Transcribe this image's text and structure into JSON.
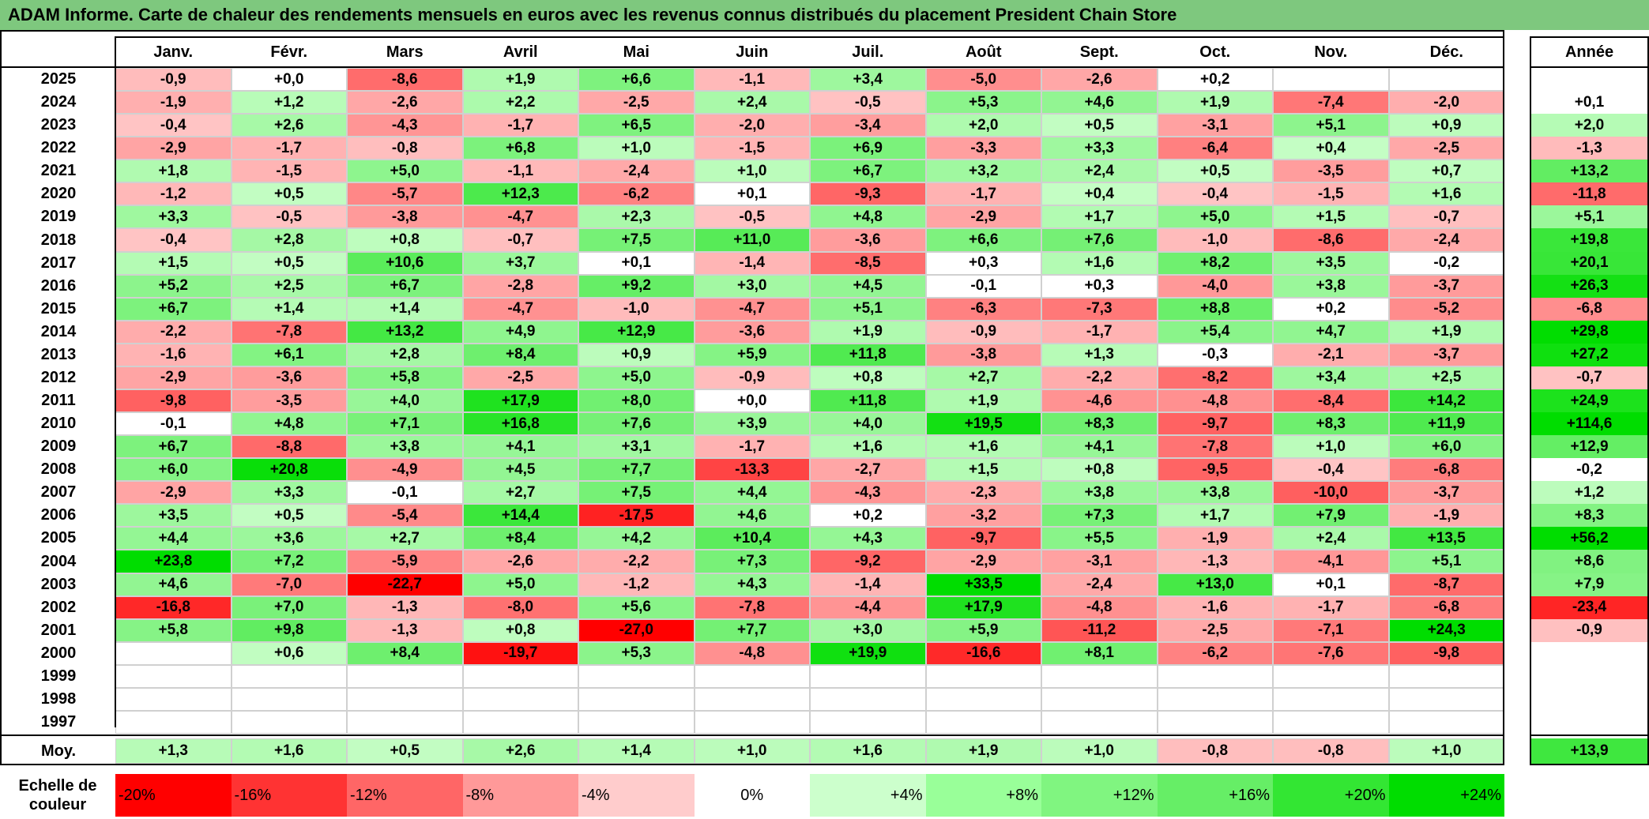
{
  "title": "ADAM Informe. Carte de chaleur des rendements mensuels en euros avec les revenus connus distribués du placement President Chain Store",
  "chart_data": {
    "type": "heatmap",
    "title": "ADAM Informe. Carte de chaleur des rendements mensuels en euros avec les revenus connus distribués du placement President Chain Store",
    "months": [
      "Janv.",
      "Févr.",
      "Mars",
      "Avril",
      "Mai",
      "Juin",
      "Juil.",
      "Août",
      "Sept.",
      "Oct.",
      "Nov.",
      "Déc."
    ],
    "annual_header": "Année",
    "rows": [
      {
        "year": "2025",
        "values": [
          "-0,9",
          "+0,0",
          "-8,6",
          "+1,9",
          "+6,6",
          "-1,1",
          "+3,4",
          "-5,0",
          "-2,6",
          "+0,2",
          "",
          ""
        ],
        "annual": ""
      },
      {
        "year": "2024",
        "values": [
          "-1,9",
          "+1,2",
          "-2,6",
          "+2,2",
          "-2,5",
          "+2,4",
          "-0,5",
          "+5,3",
          "+4,6",
          "+1,9",
          "-7,4",
          "-2,0"
        ],
        "annual": "+0,1"
      },
      {
        "year": "2023",
        "values": [
          "-0,4",
          "+2,6",
          "-4,3",
          "-1,7",
          "+6,5",
          "-2,0",
          "-3,4",
          "+2,0",
          "+0,5",
          "-3,1",
          "+5,1",
          "+0,9"
        ],
        "annual": "+2,0"
      },
      {
        "year": "2022",
        "values": [
          "-2,9",
          "-1,7",
          "-0,8",
          "+6,8",
          "+1,0",
          "-1,5",
          "+6,9",
          "-3,3",
          "+3,3",
          "-6,4",
          "+0,4",
          "-2,5"
        ],
        "annual": "-1,3"
      },
      {
        "year": "2021",
        "values": [
          "+1,8",
          "-1,5",
          "+5,0",
          "-1,1",
          "-2,4",
          "+1,0",
          "+6,7",
          "+3,2",
          "+2,4",
          "+0,5",
          "-3,5",
          "+0,7"
        ],
        "annual": "+13,2"
      },
      {
        "year": "2020",
        "values": [
          "-1,2",
          "+0,5",
          "-5,7",
          "+12,3",
          "-6,2",
          "+0,1",
          "-9,3",
          "-1,7",
          "+0,4",
          "-0,4",
          "-1,5",
          "+1,6"
        ],
        "annual": "-11,8"
      },
      {
        "year": "2019",
        "values": [
          "+3,3",
          "-0,5",
          "-3,8",
          "-4,7",
          "+2,3",
          "-0,5",
          "+4,8",
          "-2,9",
          "+1,7",
          "+5,0",
          "+1,5",
          "-0,7"
        ],
        "annual": "+5,1"
      },
      {
        "year": "2018",
        "values": [
          "-0,4",
          "+2,8",
          "+0,8",
          "-0,7",
          "+7,5",
          "+11,0",
          "-3,6",
          "+6,6",
          "+7,6",
          "-1,0",
          "-8,6",
          "-2,4"
        ],
        "annual": "+19,8"
      },
      {
        "year": "2017",
        "values": [
          "+1,5",
          "+0,5",
          "+10,6",
          "+3,7",
          "+0,1",
          "-1,4",
          "-8,5",
          "+0,3",
          "+1,6",
          "+8,2",
          "+3,5",
          "-0,2"
        ],
        "annual": "+20,1"
      },
      {
        "year": "2016",
        "values": [
          "+5,2",
          "+2,5",
          "+6,7",
          "-2,8",
          "+9,2",
          "+3,0",
          "+4,5",
          "-0,1",
          "+0,3",
          "-4,0",
          "+3,8",
          "-3,7"
        ],
        "annual": "+26,3"
      },
      {
        "year": "2015",
        "values": [
          "+6,7",
          "+1,4",
          "+1,4",
          "-4,7",
          "-1,0",
          "-4,7",
          "+5,1",
          "-6,3",
          "-7,3",
          "+8,8",
          "+0,2",
          "-5,2"
        ],
        "annual": "-6,8"
      },
      {
        "year": "2014",
        "values": [
          "-2,2",
          "-7,8",
          "+13,2",
          "+4,9",
          "+12,9",
          "-3,6",
          "+1,9",
          "-0,9",
          "-1,7",
          "+5,4",
          "+4,7",
          "+1,9"
        ],
        "annual": "+29,8"
      },
      {
        "year": "2013",
        "values": [
          "-1,6",
          "+6,1",
          "+2,8",
          "+8,4",
          "+0,9",
          "+5,9",
          "+11,8",
          "-3,8",
          "+1,3",
          "-0,3",
          "-2,1",
          "-3,7"
        ],
        "annual": "+27,2"
      },
      {
        "year": "2012",
        "values": [
          "-2,9",
          "-3,6",
          "+5,8",
          "-2,5",
          "+5,0",
          "-0,9",
          "+0,8",
          "+2,7",
          "-2,2",
          "-8,2",
          "+3,4",
          "+2,5"
        ],
        "annual": "-0,7"
      },
      {
        "year": "2011",
        "values": [
          "-9,8",
          "-3,5",
          "+4,0",
          "+17,9",
          "+8,0",
          "+0,0",
          "+11,8",
          "+1,9",
          "-4,6",
          "-4,8",
          "-8,4",
          "+14,2"
        ],
        "annual": "+24,9"
      },
      {
        "year": "2010",
        "values": [
          "-0,1",
          "+4,8",
          "+7,1",
          "+16,8",
          "+7,6",
          "+3,9",
          "+4,0",
          "+19,5",
          "+8,3",
          "-9,7",
          "+8,3",
          "+11,9"
        ],
        "annual": "+114,6"
      },
      {
        "year": "2009",
        "values": [
          "+6,7",
          "-8,8",
          "+3,8",
          "+4,1",
          "+3,1",
          "-1,7",
          "+1,6",
          "+1,6",
          "+4,1",
          "-7,8",
          "+1,0",
          "+6,0"
        ],
        "annual": "+12,9"
      },
      {
        "year": "2008",
        "values": [
          "+6,0",
          "+20,8",
          "-4,9",
          "+4,5",
          "+7,7",
          "-13,3",
          "-2,7",
          "+1,5",
          "+0,8",
          "-9,5",
          "-0,4",
          "-6,8"
        ],
        "annual": "-0,2"
      },
      {
        "year": "2007",
        "values": [
          "-2,9",
          "+3,3",
          "-0,1",
          "+2,7",
          "+7,5",
          "+4,4",
          "-4,3",
          "-2,3",
          "+3,8",
          "+3,8",
          "-10,0",
          "-3,7"
        ],
        "annual": "+1,2"
      },
      {
        "year": "2006",
        "values": [
          "+3,5",
          "+0,5",
          "-5,4",
          "+14,4",
          "-17,5",
          "+4,6",
          "+0,2",
          "-3,2",
          "+7,3",
          "+1,7",
          "+7,9",
          "-1,9"
        ],
        "annual": "+8,3"
      },
      {
        "year": "2005",
        "values": [
          "+4,4",
          "+3,6",
          "+2,7",
          "+8,4",
          "+4,2",
          "+10,4",
          "+4,3",
          "-9,7",
          "+5,5",
          "-1,9",
          "+2,4",
          "+13,5"
        ],
        "annual": "+56,2"
      },
      {
        "year": "2004",
        "values": [
          "+23,8",
          "+7,2",
          "-5,9",
          "-2,6",
          "-2,2",
          "+7,3",
          "-9,2",
          "-2,9",
          "-3,1",
          "-1,3",
          "-4,1",
          "+5,1"
        ],
        "annual": "+8,6"
      },
      {
        "year": "2003",
        "values": [
          "+4,6",
          "-7,0",
          "-22,7",
          "+5,0",
          "-1,2",
          "+4,3",
          "-1,4",
          "+33,5",
          "-2,4",
          "+13,0",
          "+0,1",
          "-8,7"
        ],
        "annual": "+7,9"
      },
      {
        "year": "2002",
        "values": [
          "-16,8",
          "+7,0",
          "-1,3",
          "-8,0",
          "+5,6",
          "-7,8",
          "-4,4",
          "+17,9",
          "-4,8",
          "-1,6",
          "-1,7",
          "-6,8"
        ],
        "annual": "-23,4"
      },
      {
        "year": "2001",
        "values": [
          "+5,8",
          "+9,8",
          "-1,3",
          "+0,8",
          "-27,0",
          "+7,7",
          "+3,0",
          "+5,9",
          "-11,2",
          "-2,5",
          "-7,1",
          "+24,3"
        ],
        "annual": "-0,9"
      },
      {
        "year": "2000",
        "values": [
          "",
          "+0,6",
          "+8,4",
          "-19,7",
          "+5,3",
          "-4,8",
          "+19,9",
          "-16,6",
          "+8,1",
          "-6,2",
          "-7,6",
          "-9,8"
        ],
        "annual": ""
      },
      {
        "year": "1999",
        "values": [
          "",
          "",
          "",
          "",
          "",
          "",
          "",
          "",
          "",
          "",
          "",
          ""
        ],
        "annual": ""
      },
      {
        "year": "1998",
        "values": [
          "",
          "",
          "",
          "",
          "",
          "",
          "",
          "",
          "",
          "",
          "",
          ""
        ],
        "annual": ""
      },
      {
        "year": "1997",
        "values": [
          "",
          "",
          "",
          "",
          "",
          "",
          "",
          "",
          "",
          "",
          "",
          ""
        ],
        "annual": ""
      }
    ],
    "average": {
      "label": "Moy.",
      "values": [
        "+1,3",
        "+1,6",
        "+0,5",
        "+2,6",
        "+1,4",
        "+1,0",
        "+1,6",
        "+1,9",
        "+1,0",
        "-0,8",
        "-0,8",
        "+1,0"
      ],
      "annual": "+13,9"
    },
    "color_scale": {
      "label": "Echelle de couleur",
      "stops": [
        {
          "label": "-20%",
          "value": -20,
          "color": "#ff0000"
        },
        {
          "label": "-16%",
          "value": -16,
          "color": "#ff3333"
        },
        {
          "label": "-12%",
          "value": -12,
          "color": "#ff6666"
        },
        {
          "label": "-8%",
          "value": -8,
          "color": "#ff9999"
        },
        {
          "label": "-4%",
          "value": -4,
          "color": "#ffcccc"
        },
        {
          "label": "0%",
          "value": 0,
          "color": "#ffffff"
        },
        {
          "label": "+4%",
          "value": 4,
          "color": "#ccffcc"
        },
        {
          "label": "+8%",
          "value": 8,
          "color": "#99ff99"
        },
        {
          "label": "+12%",
          "value": 12,
          "color": "#80f580"
        },
        {
          "label": "+16%",
          "value": 16,
          "color": "#66ee66"
        },
        {
          "label": "+20%",
          "value": 20,
          "color": "#33e633"
        },
        {
          "label": "+24%",
          "value": 24,
          "color": "#00dd00"
        }
      ]
    }
  }
}
